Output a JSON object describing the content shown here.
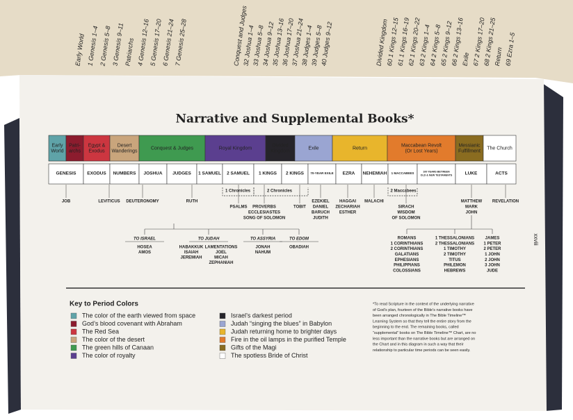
{
  "top_page": {
    "columns": [
      [
        "Early World",
        "1 Genesis 1–4",
        "2 Genesis 5–8",
        "3 Genesis 9–11",
        "Patriarchs",
        "4 Genesis 12–16",
        "5 Genesis 17–20",
        "6 Genesis 21–24",
        "7 Genesis 25–28"
      ],
      [
        "Conquest and Judges",
        "32 Joshua 1–4",
        "33 Joshua 5–8",
        "34 Joshua 9–12",
        "35 Joshua 13–16",
        "36 Joshua 17–20",
        "37 Joshua 21–24",
        "38 Judges 1–4",
        "39 Judges 5–8",
        "40 Judges 9–12"
      ],
      [
        "Divided Kingdom",
        "60 1 Kings 12–15",
        "61 1 Kings 16–19",
        "62 1 Kings 20–22",
        "63 2 Kings 1–4",
        "64 2 Kings 5–8",
        "65 2 Kings 9–12",
        "66 2 Kings 13–16",
        "Exile",
        "67 2 Kings 17–20",
        "68 2 Kings 21–25",
        "Return",
        "69 Ezra 1–5"
      ]
    ]
  },
  "title": "Narrative and Supplemental Books*",
  "periods": [
    {
      "lines": [
        "Early",
        "World"
      ],
      "color": "#5fa3a8"
    },
    {
      "lines": [
        "Patri-",
        "archs"
      ],
      "color": "#8c1c2e"
    },
    {
      "lines": [
        "Egypt &",
        "Exodus"
      ],
      "color": "#cc3640"
    },
    {
      "lines": [
        "Desert",
        "Wanderings"
      ],
      "color": "#c9a57c"
    },
    {
      "lines": [
        "Conquest & Judges"
      ],
      "color": "#3f9a50"
    },
    {
      "lines": [
        "Royal Kingdom"
      ],
      "color": "#5b3f8f"
    },
    {
      "lines": [
        "Divided",
        "Kingdom"
      ],
      "color": "#26242a"
    },
    {
      "lines": [
        "Exile"
      ],
      "color": "#9aa5d2"
    },
    {
      "lines": [
        "Return"
      ],
      "color": "#e8b52c"
    },
    {
      "lines": [
        "Maccabean Revolt",
        "(Or Lost Years)"
      ],
      "color": "#e27b2c"
    },
    {
      "lines": [
        "Messianic",
        "Fulfillment"
      ],
      "color": "#8a6c20"
    },
    {
      "lines": [
        "The Church"
      ],
      "color": "#ffffff"
    }
  ],
  "books": [
    {
      "lines": [
        "GENESIS"
      ]
    },
    {
      "lines": [
        "EXODUS"
      ]
    },
    {
      "lines": [
        "NUMBERS"
      ]
    },
    {
      "lines": [
        "JOSHUA"
      ]
    },
    {
      "lines": [
        "JUDGES"
      ]
    },
    {
      "lines": [
        "1 SAMUEL"
      ]
    },
    {
      "lines": [
        "2 SAMUEL"
      ]
    },
    {
      "lines": [
        "1 KINGS"
      ]
    },
    {
      "lines": [
        "2 KINGS"
      ]
    },
    {
      "lines": [
        "70-YEAR EXILE"
      ]
    },
    {
      "lines": [
        "EZRA"
      ]
    },
    {
      "lines": [
        "NEHEMIAH"
      ]
    },
    {
      "lines": [
        "1 MACCABEES"
      ]
    },
    {
      "lines": [
        "100 YEARS BETWEEN",
        "OLD & NEW TESTAMENTS"
      ]
    },
    {
      "lines": [
        "LUKE"
      ]
    },
    {
      "lines": [
        "ACTS"
      ]
    }
  ],
  "brackets": [
    "1 Chronicles",
    "2 Chronicles",
    "2 Maccabees"
  ],
  "supplemental": [
    {
      "lines": [
        "JOB"
      ]
    },
    {
      "lines": [
        "LEVITICUS"
      ]
    },
    {
      "lines": [
        "DEUTERONOMY"
      ]
    },
    {
      "lines": [
        "RUTH"
      ]
    },
    {
      "lines": [
        "PSALMS"
      ]
    },
    {
      "lines": [
        "PROVERBS",
        "ECCLESIASTES",
        "SONG OF SOLOMON"
      ]
    },
    {
      "lines": [
        "TOBIT"
      ]
    },
    {
      "lines": [
        "EZEKIEL",
        "DANIEL",
        "BARUCH",
        "JUDITH"
      ]
    },
    {
      "lines": [
        "HAGGAI",
        "ZECHARIAH",
        "ESTHER"
      ]
    },
    {
      "lines": [
        "MALACHI"
      ]
    },
    {
      "lines": [
        "SIRACH",
        "WISDOM",
        "OF SOLOMON"
      ]
    },
    {
      "lines": [
        "MATTHEW",
        "MARK",
        "JOHN"
      ]
    },
    {
      "lines": [
        "REVELATION"
      ]
    }
  ],
  "prophet_headings": [
    "TO ISRAEL",
    "TO JUDAH",
    "TO ASSYRIA",
    "TO EDOM"
  ],
  "prophets": [
    {
      "lines": [
        "HOSEA",
        "AMOS"
      ]
    },
    {
      "lines": [
        "HABAKKUK",
        "ISAIAH",
        "JEREMIAH"
      ]
    },
    {
      "lines": [
        "LAMENTATIONS",
        "JOEL",
        "MICAH",
        "ZEPHANIAH"
      ]
    },
    {
      "lines": [
        "JONAH",
        "NAHUM"
      ]
    },
    {
      "lines": [
        "OBADIAH"
      ]
    }
  ],
  "epistles": [
    {
      "lines": [
        "ROMANS",
        "1 CORINTHIANS",
        "2 CORINTHIANS",
        "GALATIANS",
        "EPHESIANS",
        "PHILIPPIANS",
        "COLOSSIANS"
      ]
    },
    {
      "lines": [
        "1 THESSALONIANS",
        "2 THESSALONIANS",
        "1 TIMOTHY",
        "2 TIMOTHY",
        "TITUS",
        "PHILEMON",
        "HEBREWS"
      ]
    },
    {
      "lines": [
        "JAMES",
        "1 PETER",
        "2 PETER",
        "1 JOHN",
        "2 JOHN",
        "3 JOHN",
        "JUDE"
      ]
    }
  ],
  "page_number": "xxviii",
  "key": {
    "heading": "Key to Period Colors",
    "items": [
      {
        "text": "The color of the earth viewed from space",
        "color": "#5fa3a8"
      },
      {
        "text": "God’s blood covenant with Abraham",
        "color": "#8c1c2e"
      },
      {
        "text": "The Red Sea",
        "color": "#cc3640"
      },
      {
        "text": "The color of the desert",
        "color": "#c9a57c"
      },
      {
        "text": "The green hills of Canaan",
        "color": "#3f9a50"
      },
      {
        "text": "The color of royalty",
        "color": "#5b3f8f"
      },
      {
        "text": "Israel’s darkest period",
        "color": "#26242a"
      },
      {
        "text": "Judah “singing the blues” in Babylon",
        "color": "#9aa5d2"
      },
      {
        "text": "Judah returning home to brighter days",
        "color": "#e8b52c"
      },
      {
        "text": "Fire in the oil lamps in the purified Temple",
        "color": "#e27b2c"
      },
      {
        "text": "Gifts of the Magi",
        "color": "#8a6c20"
      },
      {
        "text": "The spotless Bride of Christ",
        "color": "#ffffff"
      }
    ]
  },
  "footnote": [
    "*To read Scripture in the context of the underlying narrative",
    "of God’s plan, fourteen of the Bible’s narrative books have",
    "been arranged chronologically in The Bible Timeline™",
    "Learning System so that they tell the entire story from the",
    "beginning to the end. The remaining books, called",
    "“supplemental” books on The Bible Timeline™ Chart, are no",
    "less important than the narrative books but are arranged on",
    "the Chart and in this diagram in such a way that their",
    "relationship to particular time periods can be seen easily."
  ]
}
